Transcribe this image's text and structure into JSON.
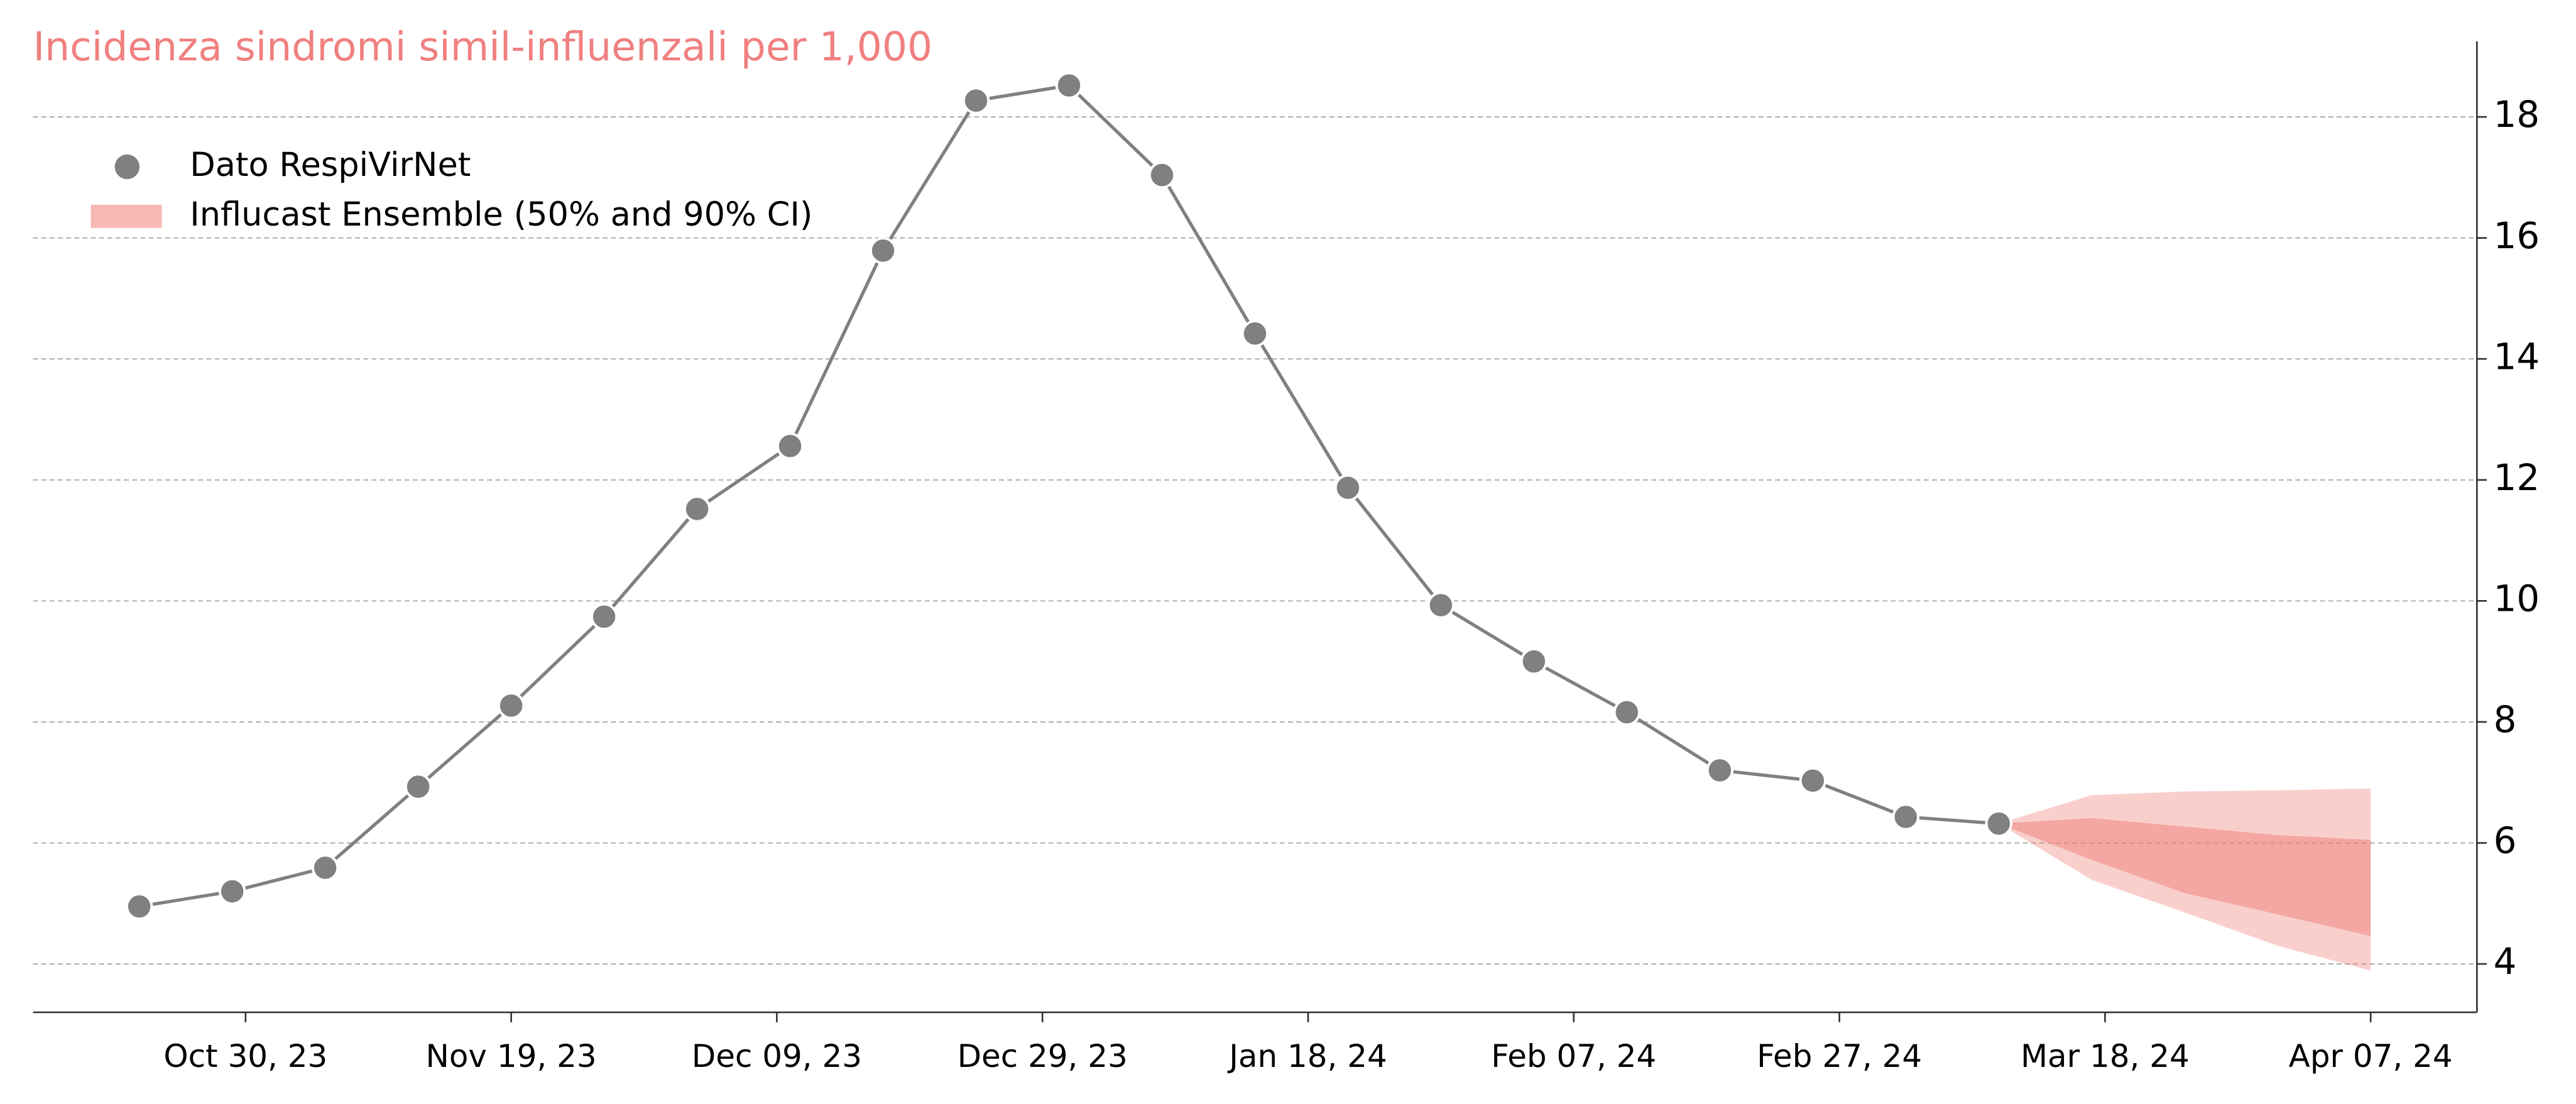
{
  "chart_data": {
    "type": "line",
    "title": "Incidenza sindromi simil-influenzali per 1,000",
    "x": [
      "2023-10-22",
      "2023-10-29",
      "2023-11-05",
      "2023-11-12",
      "2023-11-19",
      "2023-11-26",
      "2023-12-03",
      "2023-12-10",
      "2023-12-17",
      "2023-12-24",
      "2023-12-31",
      "2024-01-07",
      "2024-01-14",
      "2024-01-21",
      "2024-01-28",
      "2024-02-04",
      "2024-02-11",
      "2024-02-18",
      "2024-02-25",
      "2024-03-03",
      "2024-03-10"
    ],
    "series": [
      {
        "name": "Dato RespiVirNet",
        "color": "#808080",
        "values": [
          4.95,
          5.2,
          5.59,
          6.93,
          8.27,
          9.74,
          11.52,
          12.56,
          15.79,
          18.27,
          18.52,
          17.04,
          14.42,
          11.87,
          9.93,
          9.0,
          8.16,
          7.2,
          7.03,
          6.43,
          6.32
        ]
      }
    ],
    "forecast": {
      "name": "Influcast Ensemble (50% and 90% CI)",
      "color": "#f08078",
      "x": [
        "2024-03-10",
        "2024-03-17",
        "2024-03-24",
        "2024-03-31",
        "2024-04-07"
      ],
      "upper_90": [
        6.32,
        6.79,
        6.85,
        6.87,
        6.9
      ],
      "lower_90": [
        6.32,
        5.39,
        4.85,
        4.3,
        3.89
      ],
      "upper_50": [
        6.32,
        6.41,
        6.27,
        6.13,
        6.05
      ],
      "lower_50": [
        6.32,
        5.72,
        5.17,
        4.82,
        4.46
      ]
    },
    "xlim": [
      "2023-10-14",
      "2024-04-15"
    ],
    "xticks": [
      {
        "value": "2023-10-30",
        "label": "Oct 30, 23"
      },
      {
        "value": "2023-11-19",
        "label": "Nov 19, 23"
      },
      {
        "value": "2023-12-09",
        "label": "Dec 09, 23"
      },
      {
        "value": "2023-12-29",
        "label": "Dec 29, 23"
      },
      {
        "value": "2024-01-18",
        "label": "Jan 18, 24"
      },
      {
        "value": "2024-02-07",
        "label": "Feb 07, 24"
      },
      {
        "value": "2024-02-27",
        "label": "Feb 27, 24"
      },
      {
        "value": "2024-03-18",
        "label": "Mar 18, 24"
      },
      {
        "value": "2024-04-07",
        "label": "Apr 07, 24"
      }
    ],
    "ylim": [
      3.2,
      19.25
    ],
    "yticks": [
      4,
      6,
      8,
      10,
      12,
      14,
      16,
      18
    ],
    "grid": true,
    "legend": "upper left"
  }
}
